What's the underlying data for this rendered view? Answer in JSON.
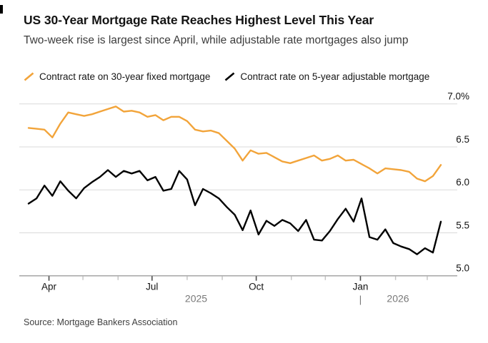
{
  "header": {
    "title": "US 30-Year Mortgage Rate Reaches Highest Level This Year",
    "subtitle": "Two-week rise is largest since April, while adjustable rate mortgages also jump"
  },
  "legend": [
    {
      "label": "Contract rate on 30-year fixed mortgage",
      "color": "#F2A43A"
    },
    {
      "label": "Contract rate on 5-year adjustable mortgage",
      "color": "#000000"
    }
  ],
  "source": "Source: Mortgage Bankers Association",
  "colors": {
    "fixed_line": "#F2A43A",
    "arm_line": "#000000",
    "gridline": "#d9d9d9",
    "axis_line": "#a6a6a6",
    "major_tick": "#4d4d4d",
    "minor_tick": "#c2c2c2",
    "axis_label": "#141414",
    "year_label": "#787878"
  },
  "chart_data": {
    "type": "line",
    "title": "US 30-Year Mortgage Rate Reaches Highest Level This Year",
    "subtitle": "Two-week rise is largest since April, while adjustable rate mortgages also jump",
    "unit": "%",
    "grid": "horizontal",
    "legend_position": "top",
    "ylim": [
      5.0,
      7.0
    ],
    "y_axis": {
      "side": "right",
      "ticks": [
        {
          "label": "7.0%",
          "value": 7.0
        },
        {
          "label": "6.5",
          "value": 6.5
        },
        {
          "label": "6.0",
          "value": 6.0
        },
        {
          "label": "5.5",
          "value": 5.5
        },
        {
          "label": "5.0",
          "value": 5.0
        }
      ]
    },
    "x_axis": {
      "major_ticks": [
        {
          "label": "Apr",
          "date": "2025-04-01"
        },
        {
          "label": "Jul",
          "date": "2025-07-01"
        },
        {
          "label": "Oct",
          "date": "2025-10-01"
        },
        {
          "label": "Jan",
          "date": "2026-01-01"
        }
      ],
      "minor_tick_dates": [
        "2025-05-01",
        "2025-06-01",
        "2025-08-01",
        "2025-09-01",
        "2025-11-01",
        "2025-12-01",
        "2026-02-01",
        "2026-03-01"
      ],
      "year_row": {
        "left_year": "2025",
        "separator": "|",
        "right_year": "2026"
      }
    },
    "x": [
      "2025-03-14",
      "2025-03-21",
      "2025-03-28",
      "2025-04-04",
      "2025-04-11",
      "2025-04-18",
      "2025-04-25",
      "2025-05-02",
      "2025-05-09",
      "2025-05-16",
      "2025-05-23",
      "2025-05-30",
      "2025-06-06",
      "2025-06-13",
      "2025-06-20",
      "2025-06-27",
      "2025-07-04",
      "2025-07-11",
      "2025-07-18",
      "2025-07-25",
      "2025-08-01",
      "2025-08-08",
      "2025-08-15",
      "2025-08-22",
      "2025-08-29",
      "2025-09-05",
      "2025-09-12",
      "2025-09-19",
      "2025-09-26",
      "2025-10-03",
      "2025-10-10",
      "2025-10-17",
      "2025-10-24",
      "2025-10-31",
      "2025-11-07",
      "2025-11-14",
      "2025-11-21",
      "2025-11-28",
      "2025-12-05",
      "2025-12-12",
      "2025-12-19",
      "2025-12-26",
      "2026-01-02",
      "2026-01-09",
      "2026-01-16",
      "2026-01-23",
      "2026-01-30",
      "2026-02-06",
      "2026-02-13",
      "2026-02-20",
      "2026-02-27",
      "2026-03-06",
      "2026-03-13"
    ],
    "series": [
      {
        "name": "Contract rate on 30-year fixed mortgage",
        "color": "#F2A43A",
        "values": [
          6.72,
          6.71,
          6.7,
          6.61,
          6.77,
          6.9,
          6.88,
          6.86,
          6.88,
          6.91,
          6.94,
          6.97,
          6.91,
          6.92,
          6.9,
          6.85,
          6.87,
          6.81,
          6.85,
          6.85,
          6.8,
          6.7,
          6.68,
          6.69,
          6.66,
          6.57,
          6.48,
          6.34,
          6.46,
          6.42,
          6.43,
          6.38,
          6.33,
          6.31,
          6.34,
          6.37,
          6.4,
          6.34,
          6.36,
          6.4,
          6.34,
          6.35,
          6.3,
          6.25,
          6.19,
          6.25,
          6.24,
          6.23,
          6.21,
          6.13,
          6.1,
          6.16,
          6.29
        ]
      },
      {
        "name": "Contract rate on 5-year adjustable mortgage",
        "color": "#000000",
        "values": [
          5.84,
          5.9,
          6.05,
          5.93,
          6.1,
          5.99,
          5.9,
          6.02,
          6.09,
          6.15,
          6.23,
          6.15,
          6.22,
          6.19,
          6.22,
          6.11,
          6.15,
          5.99,
          6.01,
          6.22,
          6.12,
          5.82,
          6.01,
          5.96,
          5.9,
          5.8,
          5.71,
          5.53,
          5.76,
          5.48,
          5.64,
          5.58,
          5.65,
          5.61,
          5.52,
          5.65,
          5.42,
          5.41,
          5.52,
          5.66,
          5.78,
          5.63,
          5.9,
          5.45,
          5.42,
          5.54,
          5.38,
          5.34,
          5.31,
          5.25,
          5.32,
          5.27,
          5.63
        ]
      }
    ]
  }
}
